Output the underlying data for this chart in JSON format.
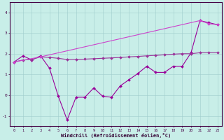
{
  "xlabel": "Windchill (Refroidissement éolien,°C)",
  "background_color": "#c8eee8",
  "grid_color": "#a0cccc",
  "x": [
    0,
    1,
    2,
    3,
    4,
    5,
    6,
    7,
    8,
    9,
    10,
    11,
    12,
    13,
    14,
    15,
    16,
    17,
    18,
    19,
    20,
    21,
    22,
    23
  ],
  "line_zigzag_y": [
    1.6,
    1.9,
    1.7,
    1.9,
    1.3,
    -0.05,
    -1.2,
    -0.1,
    -0.1,
    0.35,
    -0.05,
    -0.1,
    0.45,
    0.75,
    1.05,
    1.4,
    1.1,
    1.1,
    1.4,
    1.4,
    2.05,
    3.6,
    3.5,
    3.4
  ],
  "line_middle_y": [
    1.6,
    1.7,
    1.72,
    1.85,
    1.82,
    1.78,
    1.72,
    1.72,
    1.74,
    1.76,
    1.78,
    1.8,
    1.82,
    1.85,
    1.87,
    1.9,
    1.92,
    1.95,
    1.98,
    2.0,
    2.0,
    2.05,
    2.05,
    2.05
  ],
  "line_upper_x": [
    0,
    3,
    21,
    22,
    23
  ],
  "line_upper_y": [
    1.6,
    1.85,
    3.6,
    3.45,
    3.4
  ],
  "line_color_dark": "#990099",
  "line_color_mid": "#993399",
  "line_color_upper": "#cc44cc",
  "ylim": [
    -1.5,
    4.5
  ],
  "yticks": [
    -1,
    0,
    1,
    2,
    3,
    4
  ],
  "figsize": [
    3.2,
    2.0
  ],
  "dpi": 100
}
